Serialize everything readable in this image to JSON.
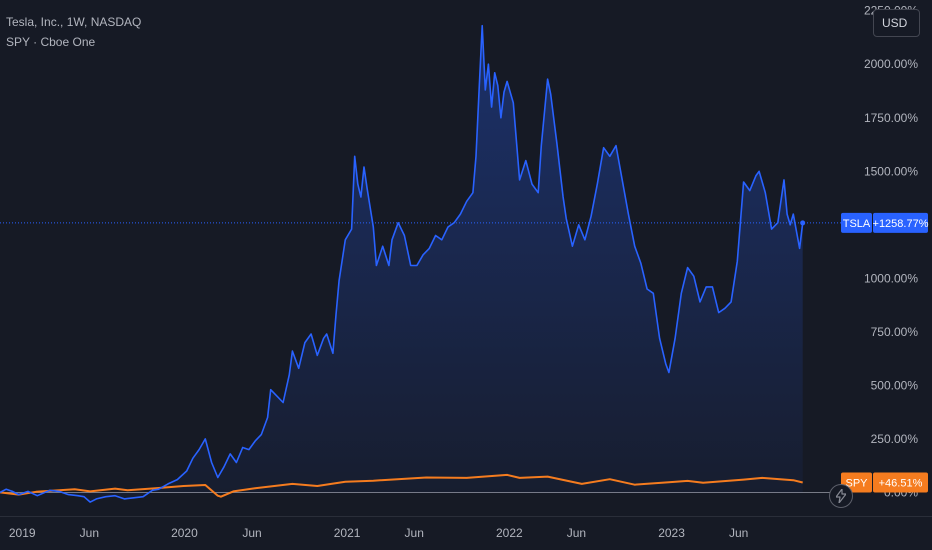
{
  "legend": {
    "title": "Tesla, Inc., 1W, NASDAQ",
    "compare": "SPY · Cboe One"
  },
  "currency_label": "USD",
  "icons": {
    "currency": "currency-selector",
    "quick": "lightning-icon"
  },
  "colors": {
    "tsla": "#2962ff",
    "spy": "#f57c1f",
    "background": "#161a25",
    "text": "#b2b5be"
  },
  "chart_data": {
    "type": "line",
    "y_scale": "percent",
    "ylim": [
      -110,
      2300
    ],
    "xlim": [
      "2018-11-12",
      "2024-01-15"
    ],
    "y_ticks": [
      {
        "v": 2250,
        "label": "2250.00%"
      },
      {
        "v": 2000,
        "label": "2000.00%"
      },
      {
        "v": 1750,
        "label": "1750.00%"
      },
      {
        "v": 1500,
        "label": "1500.00%"
      },
      {
        "v": 1250,
        "label": ""
      },
      {
        "v": 1000,
        "label": "1000.00%"
      },
      {
        "v": 750,
        "label": "750.00%"
      },
      {
        "v": 500,
        "label": "500.00%"
      },
      {
        "v": 250,
        "label": "250.00%"
      },
      {
        "v": 0,
        "label": "0.00%"
      }
    ],
    "x_ticks": [
      {
        "date": "2019-01-01",
        "label": "2019"
      },
      {
        "date": "2019-06-01",
        "label": "Jun"
      },
      {
        "date": "2020-01-01",
        "label": "2020"
      },
      {
        "date": "2020-06-01",
        "label": "Jun"
      },
      {
        "date": "2021-01-01",
        "label": "2021"
      },
      {
        "date": "2021-06-01",
        "label": "Jun"
      },
      {
        "date": "2022-01-01",
        "label": "2022"
      },
      {
        "date": "2022-06-01",
        "label": "Jun"
      },
      {
        "date": "2023-01-01",
        "label": "2023"
      },
      {
        "date": "2023-06-01",
        "label": "Jun"
      }
    ],
    "series": [
      {
        "name": "TSLA",
        "last_label": "+1258.77%",
        "points": [
          [
            "2018-11-12",
            0
          ],
          [
            "2018-11-26",
            15
          ],
          [
            "2018-12-10",
            5
          ],
          [
            "2018-12-24",
            -10
          ],
          [
            "2019-01-14",
            5
          ],
          [
            "2019-02-04",
            -15
          ],
          [
            "2019-03-04",
            10
          ],
          [
            "2019-03-25",
            5
          ],
          [
            "2019-04-15",
            -10
          ],
          [
            "2019-05-06",
            -15
          ],
          [
            "2019-05-20",
            -20
          ],
          [
            "2019-06-03",
            -45
          ],
          [
            "2019-06-17",
            -30
          ],
          [
            "2019-07-08",
            -20
          ],
          [
            "2019-07-29",
            -15
          ],
          [
            "2019-08-19",
            -30
          ],
          [
            "2019-09-09",
            -25
          ],
          [
            "2019-09-30",
            -20
          ],
          [
            "2019-10-21",
            10
          ],
          [
            "2019-11-04",
            15
          ],
          [
            "2019-11-25",
            40
          ],
          [
            "2019-12-16",
            60
          ],
          [
            "2020-01-06",
            100
          ],
          [
            "2020-01-20",
            160
          ],
          [
            "2020-02-03",
            200
          ],
          [
            "2020-02-17",
            250
          ],
          [
            "2020-03-02",
            140
          ],
          [
            "2020-03-16",
            70
          ],
          [
            "2020-03-30",
            120
          ],
          [
            "2020-04-13",
            180
          ],
          [
            "2020-04-27",
            140
          ],
          [
            "2020-05-11",
            210
          ],
          [
            "2020-05-25",
            200
          ],
          [
            "2020-06-08",
            240
          ],
          [
            "2020-06-22",
            270
          ],
          [
            "2020-07-06",
            350
          ],
          [
            "2020-07-13",
            480
          ],
          [
            "2020-07-27",
            450
          ],
          [
            "2020-08-10",
            420
          ],
          [
            "2020-08-24",
            550
          ],
          [
            "2020-08-31",
            660
          ],
          [
            "2020-09-14",
            580
          ],
          [
            "2020-09-28",
            700
          ],
          [
            "2020-10-12",
            740
          ],
          [
            "2020-10-26",
            640
          ],
          [
            "2020-11-09",
            720
          ],
          [
            "2020-11-16",
            740
          ],
          [
            "2020-11-30",
            650
          ],
          [
            "2020-12-07",
            830
          ],
          [
            "2020-12-14",
            990
          ],
          [
            "2020-12-28",
            1180
          ],
          [
            "2021-01-11",
            1230
          ],
          [
            "2021-01-18",
            1570
          ],
          [
            "2021-01-25",
            1440
          ],
          [
            "2021-02-01",
            1380
          ],
          [
            "2021-02-08",
            1520
          ],
          [
            "2021-02-15",
            1420
          ],
          [
            "2021-03-01",
            1240
          ],
          [
            "2021-03-08",
            1060
          ],
          [
            "2021-03-22",
            1150
          ],
          [
            "2021-04-05",
            1060
          ],
          [
            "2021-04-12",
            1180
          ],
          [
            "2021-04-26",
            1260
          ],
          [
            "2021-05-10",
            1200
          ],
          [
            "2021-05-24",
            1060
          ],
          [
            "2021-06-07",
            1060
          ],
          [
            "2021-06-21",
            1110
          ],
          [
            "2021-07-05",
            1140
          ],
          [
            "2021-07-19",
            1200
          ],
          [
            "2021-08-02",
            1180
          ],
          [
            "2021-08-16",
            1240
          ],
          [
            "2021-08-30",
            1260
          ],
          [
            "2021-09-13",
            1300
          ],
          [
            "2021-09-27",
            1360
          ],
          [
            "2021-10-11",
            1400
          ],
          [
            "2021-10-18",
            1570
          ],
          [
            "2021-10-25",
            1880
          ],
          [
            "2021-11-01",
            2180
          ],
          [
            "2021-11-08",
            1880
          ],
          [
            "2021-11-15",
            2000
          ],
          [
            "2021-11-22",
            1800
          ],
          [
            "2021-11-29",
            1960
          ],
          [
            "2021-12-06",
            1900
          ],
          [
            "2021-12-13",
            1750
          ],
          [
            "2021-12-20",
            1870
          ],
          [
            "2021-12-27",
            1920
          ],
          [
            "2022-01-10",
            1820
          ],
          [
            "2022-01-24",
            1460
          ],
          [
            "2022-02-07",
            1550
          ],
          [
            "2022-02-21",
            1440
          ],
          [
            "2022-03-07",
            1400
          ],
          [
            "2022-03-14",
            1620
          ],
          [
            "2022-03-28",
            1930
          ],
          [
            "2022-04-04",
            1860
          ],
          [
            "2022-04-18",
            1630
          ],
          [
            "2022-05-02",
            1380
          ],
          [
            "2022-05-09",
            1280
          ],
          [
            "2022-05-23",
            1150
          ],
          [
            "2022-06-06",
            1250
          ],
          [
            "2022-06-20",
            1180
          ],
          [
            "2022-07-04",
            1290
          ],
          [
            "2022-07-18",
            1440
          ],
          [
            "2022-08-01",
            1610
          ],
          [
            "2022-08-15",
            1570
          ],
          [
            "2022-08-29",
            1620
          ],
          [
            "2022-09-12",
            1460
          ],
          [
            "2022-09-26",
            1300
          ],
          [
            "2022-10-10",
            1150
          ],
          [
            "2022-10-24",
            1070
          ],
          [
            "2022-11-07",
            950
          ],
          [
            "2022-11-21",
            930
          ],
          [
            "2022-12-05",
            720
          ],
          [
            "2022-12-19",
            600
          ],
          [
            "2022-12-26",
            560
          ],
          [
            "2023-01-09",
            720
          ],
          [
            "2023-01-23",
            930
          ],
          [
            "2023-02-06",
            1050
          ],
          [
            "2023-02-20",
            1010
          ],
          [
            "2023-03-06",
            890
          ],
          [
            "2023-03-20",
            960
          ],
          [
            "2023-04-03",
            960
          ],
          [
            "2023-04-17",
            840
          ],
          [
            "2023-05-01",
            860
          ],
          [
            "2023-05-15",
            890
          ],
          [
            "2023-05-29",
            1080
          ],
          [
            "2023-06-12",
            1450
          ],
          [
            "2023-06-26",
            1410
          ],
          [
            "2023-07-10",
            1480
          ],
          [
            "2023-07-17",
            1500
          ],
          [
            "2023-07-31",
            1400
          ],
          [
            "2023-08-14",
            1230
          ],
          [
            "2023-08-28",
            1260
          ],
          [
            "2023-09-11",
            1460
          ],
          [
            "2023-09-18",
            1300
          ],
          [
            "2023-09-25",
            1250
          ],
          [
            "2023-10-02",
            1300
          ],
          [
            "2023-10-16",
            1140
          ],
          [
            "2023-10-23",
            1258.77
          ]
        ]
      },
      {
        "name": "SPY",
        "last_label": "+46.51%",
        "points": [
          [
            "2018-11-12",
            0
          ],
          [
            "2018-12-24",
            -10
          ],
          [
            "2019-02-01",
            3
          ],
          [
            "2019-04-29",
            15
          ],
          [
            "2019-06-03",
            5
          ],
          [
            "2019-07-29",
            18
          ],
          [
            "2019-08-26",
            10
          ],
          [
            "2019-10-28",
            20
          ],
          [
            "2019-12-30",
            30
          ],
          [
            "2020-02-17",
            35
          ],
          [
            "2020-03-16",
            -15
          ],
          [
            "2020-03-23",
            -20
          ],
          [
            "2020-04-20",
            5
          ],
          [
            "2020-06-08",
            20
          ],
          [
            "2020-08-31",
            40
          ],
          [
            "2020-10-26",
            30
          ],
          [
            "2020-12-28",
            50
          ],
          [
            "2021-03-01",
            55
          ],
          [
            "2021-06-28",
            70
          ],
          [
            "2021-09-27",
            68
          ],
          [
            "2021-12-27",
            82
          ],
          [
            "2022-01-24",
            68
          ],
          [
            "2022-03-28",
            74
          ],
          [
            "2022-06-13",
            40
          ],
          [
            "2022-08-15",
            62
          ],
          [
            "2022-10-10",
            36
          ],
          [
            "2022-12-26",
            48
          ],
          [
            "2023-02-06",
            54
          ],
          [
            "2023-03-13",
            45
          ],
          [
            "2023-06-12",
            60
          ],
          [
            "2023-07-24",
            68
          ],
          [
            "2023-10-02",
            57
          ],
          [
            "2023-10-23",
            46.51
          ]
        ]
      }
    ]
  }
}
